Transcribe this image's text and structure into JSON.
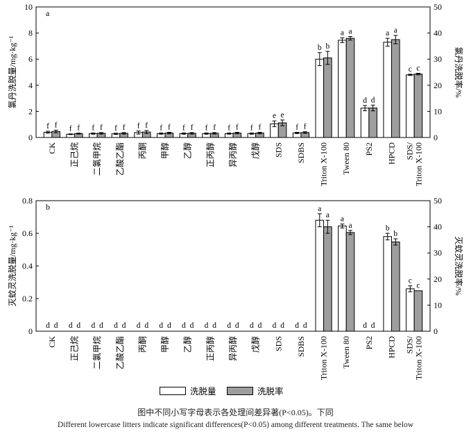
{
  "colors": {
    "series1": "#ffffff",
    "series2": "#9e9e9e",
    "stroke": "#000000"
  },
  "legend": {
    "series1": "洗脱量",
    "series2": "洗脱率"
  },
  "caption": {
    "zh": "图中不同小写字母表示各处理间差异著(P<0.05)。下同",
    "en": "Different lowercase litters indicate significant differences(P<0.05) among different treatments. The same below"
  },
  "chart_data": [
    {
      "type": "bar",
      "panel_label": "a",
      "ylabel_left": "氯丹洗脱量/mg·kg⁻¹",
      "ylabel_right": "氯丹洗脱率/%",
      "ylim_left": [
        0,
        10
      ],
      "ylim_right": [
        0,
        50
      ],
      "yticks_left": [
        "0",
        "2",
        "4",
        "6",
        "8",
        "10"
      ],
      "yticks_right": [
        "0",
        "10",
        "20",
        "30",
        "40",
        "50"
      ],
      "categories": [
        "CK",
        "正己烷",
        "二氯甲烷",
        "乙酸乙酯",
        "丙酮",
        "甲醇",
        "乙醇",
        "正丙醇",
        "异丙醇",
        "戊醇",
        "SDS",
        "SDBS",
        "Triton X-100",
        "Tween 80",
        "PS2",
        "HPCD",
        "SDS/ Triton X-100"
      ],
      "category_lines": [
        [
          "CK"
        ],
        [
          "正己烷"
        ],
        [
          "二氯甲烷"
        ],
        [
          "乙酸乙酯"
        ],
        [
          "丙酮"
        ],
        [
          "甲醇"
        ],
        [
          "乙醇"
        ],
        [
          "正丙醇"
        ],
        [
          "异丙醇"
        ],
        [
          "戊醇"
        ],
        [
          "SDS"
        ],
        [
          "SDBS"
        ],
        [
          "Triton X-100"
        ],
        [
          "Tween 80"
        ],
        [
          "PS2"
        ],
        [
          "HPCD"
        ],
        [
          "SDS/",
          "Triton X-100"
        ]
      ],
      "series": [
        {
          "name": "洗脱量",
          "axis": "left",
          "values": [
            0.4,
            0.25,
            0.3,
            0.28,
            0.38,
            0.3,
            0.3,
            0.3,
            0.3,
            0.3,
            1.05,
            0.35,
            6.0,
            7.45,
            2.25,
            7.3,
            4.8
          ],
          "errors": [
            0.08,
            0.03,
            0.05,
            0.05,
            0.12,
            0.05,
            0.05,
            0.05,
            0.05,
            0.05,
            0.22,
            0.05,
            0.5,
            0.18,
            0.2,
            0.3,
            0.05
          ],
          "letters": [
            "f",
            "f",
            "f",
            "f",
            "f",
            "f",
            "f",
            "f",
            "f",
            "f",
            "e",
            "f",
            "b",
            "a",
            "d",
            "a",
            "c"
          ]
        },
        {
          "name": "洗脱率",
          "axis": "right",
          "values": [
            2.3,
            1.5,
            1.6,
            1.6,
            2.1,
            1.7,
            1.6,
            1.6,
            1.7,
            1.7,
            5.6,
            1.9,
            30.5,
            38.0,
            11.3,
            37.5,
            24.3
          ],
          "errors": [
            0.5,
            0.2,
            0.3,
            0.3,
            0.6,
            0.3,
            0.3,
            0.3,
            0.3,
            0.3,
            1.1,
            0.3,
            2.5,
            0.7,
            1.1,
            1.6,
            0.3
          ],
          "letters": [
            "f",
            "f",
            "f",
            "f",
            "f",
            "f",
            "f",
            "f",
            "f",
            "f",
            "e",
            "f",
            "b",
            "a",
            "d",
            "a",
            "c"
          ]
        }
      ]
    },
    {
      "type": "bar",
      "panel_label": "b",
      "ylabel_left": "灭蚊灵洗脱量/mg·kg⁻¹",
      "ylabel_right": "灭蚊灵洗脱率/%",
      "ylim_left": [
        0,
        0.8
      ],
      "ylim_right": [
        0,
        50
      ],
      "yticks_left": [
        "0",
        "0.2",
        "0.4",
        "0.6",
        "0.8"
      ],
      "yticks_right": [
        "0",
        "10",
        "20",
        "30",
        "40",
        "50"
      ],
      "categories": [
        "CK",
        "正己烷",
        "二氯甲烷",
        "乙酸乙酯",
        "丙酮",
        "甲醇",
        "乙醇",
        "正丙醇",
        "异丙醇",
        "戊醇",
        "SDS",
        "SDBS",
        "Triton X-100",
        "Tween 80",
        "PS2",
        "HPCD",
        "SDS/ Triton X-100"
      ],
      "category_lines": [
        [
          "CK"
        ],
        [
          "正己烷"
        ],
        [
          "二氯甲烷"
        ],
        [
          "乙酸乙酯"
        ],
        [
          "丙酮"
        ],
        [
          "甲醇"
        ],
        [
          "乙醇"
        ],
        [
          "正丙醇"
        ],
        [
          "异丙醇"
        ],
        [
          "戊醇"
        ],
        [
          "SDS"
        ],
        [
          "SDBS"
        ],
        [
          "Triton X-100"
        ],
        [
          "Tween 80"
        ],
        [
          "PS2"
        ],
        [
          "HPCD"
        ],
        [
          "SDS/",
          "Triton X-100"
        ]
      ],
      "series": [
        {
          "name": "洗脱量",
          "axis": "left",
          "values": [
            0,
            0,
            0,
            0,
            0,
            0,
            0,
            0,
            0,
            0,
            0,
            0,
            0.68,
            0.645,
            0,
            0.58,
            0.26
          ],
          "errors": [
            0,
            0,
            0,
            0,
            0,
            0,
            0,
            0,
            0,
            0,
            0,
            0,
            0.04,
            0.012,
            0,
            0.02,
            0.018
          ],
          "letters": [
            "d",
            "d",
            "d",
            "d",
            "d",
            "d",
            "d",
            "d",
            "d",
            "d",
            "d",
            "d",
            "a",
            "a",
            "d",
            "b",
            "c"
          ]
        },
        {
          "name": "洗脱率",
          "axis": "right",
          "values": [
            0,
            0,
            0,
            0,
            0,
            0,
            0,
            0,
            0,
            0,
            0,
            0,
            40.0,
            37.8,
            0,
            34.2,
            15.5
          ],
          "errors": [
            0,
            0,
            0,
            0,
            0,
            0,
            0,
            0,
            0,
            0,
            0,
            0,
            2.5,
            0.8,
            0,
            1.2,
            0.0
          ],
          "letters": [
            "d",
            "d",
            "d",
            "d",
            "d",
            "d",
            "d",
            "d",
            "d",
            "d",
            "d",
            "d",
            "a",
            "a",
            "d",
            "b",
            "c"
          ]
        }
      ]
    }
  ]
}
